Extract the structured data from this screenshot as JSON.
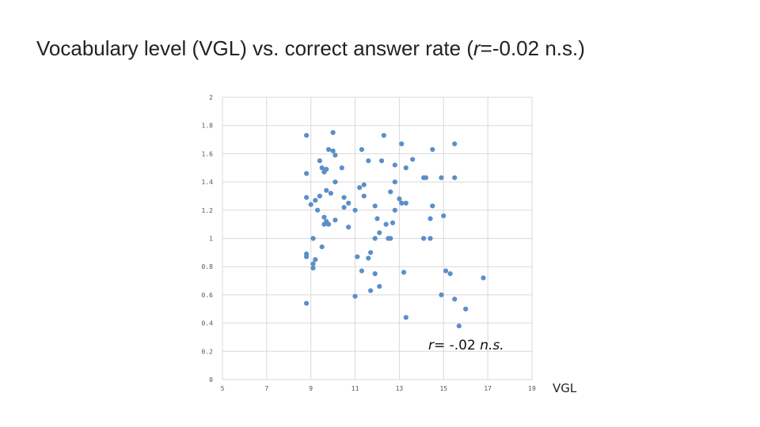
{
  "title": {
    "prefix": "Vocabulary level (VGL) vs. correct answer rate (",
    "r_symbol": "r",
    "suffix": "=-0.02 n.s.)"
  },
  "chart_data": {
    "type": "scatter",
    "title": "Vocabulary level (VGL) vs. correct answer rate (r=-0.02 n.s.)",
    "xlabel": "VGL",
    "ylabel": "",
    "xlim": [
      5,
      19
    ],
    "ylim": [
      0,
      2
    ],
    "x_ticks": [
      5,
      7,
      9,
      11,
      13,
      15,
      17,
      19
    ],
    "y_ticks": [
      0,
      0.2,
      0.4,
      0.6,
      0.8,
      1,
      1.2,
      1.4,
      1.6,
      1.8,
      2
    ],
    "grid": true,
    "annotation": {
      "r_symbol": "r",
      "text": "= -.02 ",
      "ns": "n.s."
    },
    "points": [
      {
        "x": 8.8,
        "y": 1.73
      },
      {
        "x": 8.8,
        "y": 1.46
      },
      {
        "x": 8.8,
        "y": 1.29
      },
      {
        "x": 8.8,
        "y": 0.89
      },
      {
        "x": 8.8,
        "y": 0.87
      },
      {
        "x": 8.8,
        "y": 0.54
      },
      {
        "x": 9.0,
        "y": 1.24
      },
      {
        "x": 9.1,
        "y": 1.0
      },
      {
        "x": 9.1,
        "y": 0.82
      },
      {
        "x": 9.1,
        "y": 0.79
      },
      {
        "x": 9.2,
        "y": 0.85
      },
      {
        "x": 9.2,
        "y": 1.27
      },
      {
        "x": 9.3,
        "y": 1.2
      },
      {
        "x": 9.4,
        "y": 1.55
      },
      {
        "x": 9.4,
        "y": 1.3
      },
      {
        "x": 9.5,
        "y": 1.5
      },
      {
        "x": 9.5,
        "y": 0.94
      },
      {
        "x": 9.6,
        "y": 1.47
      },
      {
        "x": 9.6,
        "y": 1.15
      },
      {
        "x": 9.6,
        "y": 1.1
      },
      {
        "x": 9.7,
        "y": 1.49
      },
      {
        "x": 9.7,
        "y": 1.34
      },
      {
        "x": 9.7,
        "y": 1.12
      },
      {
        "x": 9.8,
        "y": 1.63
      },
      {
        "x": 9.8,
        "y": 1.1
      },
      {
        "x": 9.9,
        "y": 1.32
      },
      {
        "x": 10.0,
        "y": 1.75
      },
      {
        "x": 10.0,
        "y": 1.62
      },
      {
        "x": 10.1,
        "y": 1.59
      },
      {
        "x": 10.1,
        "y": 1.4
      },
      {
        "x": 10.1,
        "y": 1.13
      },
      {
        "x": 10.4,
        "y": 1.5
      },
      {
        "x": 10.5,
        "y": 1.29
      },
      {
        "x": 10.5,
        "y": 1.22
      },
      {
        "x": 10.7,
        "y": 1.25
      },
      {
        "x": 10.7,
        "y": 1.08
      },
      {
        "x": 11.0,
        "y": 1.2
      },
      {
        "x": 11.0,
        "y": 0.59
      },
      {
        "x": 11.1,
        "y": 0.87
      },
      {
        "x": 11.2,
        "y": 1.36
      },
      {
        "x": 11.3,
        "y": 1.63
      },
      {
        "x": 11.3,
        "y": 0.77
      },
      {
        "x": 11.4,
        "y": 1.38
      },
      {
        "x": 11.4,
        "y": 1.3
      },
      {
        "x": 11.6,
        "y": 1.55
      },
      {
        "x": 11.6,
        "y": 0.86
      },
      {
        "x": 11.7,
        "y": 0.9
      },
      {
        "x": 11.7,
        "y": 0.63
      },
      {
        "x": 11.9,
        "y": 1.23
      },
      {
        "x": 11.9,
        "y": 1.0
      },
      {
        "x": 11.9,
        "y": 0.75
      },
      {
        "x": 12.0,
        "y": 1.14
      },
      {
        "x": 12.1,
        "y": 1.04
      },
      {
        "x": 12.1,
        "y": 0.66
      },
      {
        "x": 12.2,
        "y": 1.55
      },
      {
        "x": 12.3,
        "y": 1.73
      },
      {
        "x": 12.4,
        "y": 1.1
      },
      {
        "x": 12.5,
        "y": 1.0
      },
      {
        "x": 12.6,
        "y": 1.33
      },
      {
        "x": 12.6,
        "y": 1.0
      },
      {
        "x": 12.7,
        "y": 1.11
      },
      {
        "x": 12.8,
        "y": 1.52
      },
      {
        "x": 12.8,
        "y": 1.4
      },
      {
        "x": 12.8,
        "y": 1.2
      },
      {
        "x": 13.0,
        "y": 1.28
      },
      {
        "x": 13.1,
        "y": 1.67
      },
      {
        "x": 13.1,
        "y": 1.25
      },
      {
        "x": 13.2,
        "y": 0.76
      },
      {
        "x": 13.3,
        "y": 1.5
      },
      {
        "x": 13.3,
        "y": 1.25
      },
      {
        "x": 13.3,
        "y": 0.44
      },
      {
        "x": 13.6,
        "y": 1.56
      },
      {
        "x": 14.1,
        "y": 1.43
      },
      {
        "x": 14.1,
        "y": 1.0
      },
      {
        "x": 14.2,
        "y": 1.43
      },
      {
        "x": 14.4,
        "y": 1.14
      },
      {
        "x": 14.4,
        "y": 1.0
      },
      {
        "x": 14.5,
        "y": 1.63
      },
      {
        "x": 14.5,
        "y": 1.23
      },
      {
        "x": 14.9,
        "y": 1.43
      },
      {
        "x": 14.9,
        "y": 0.6
      },
      {
        "x": 15.0,
        "y": 1.16
      },
      {
        "x": 15.1,
        "y": 0.77
      },
      {
        "x": 15.3,
        "y": 0.75
      },
      {
        "x": 15.5,
        "y": 1.67
      },
      {
        "x": 15.5,
        "y": 1.43
      },
      {
        "x": 15.5,
        "y": 0.57
      },
      {
        "x": 15.7,
        "y": 0.38
      },
      {
        "x": 16.0,
        "y": 0.5
      },
      {
        "x": 16.8,
        "y": 0.72
      }
    ],
    "colors": {
      "point": "#5b8fc7",
      "grid": "#d9d9d9"
    }
  }
}
